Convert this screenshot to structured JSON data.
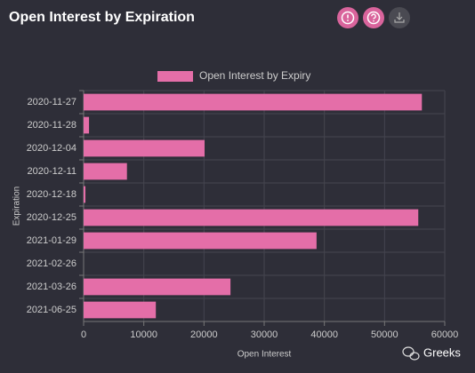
{
  "header": {
    "title": "Open Interest by Expiration"
  },
  "watermark": "Greeks",
  "chart_data": {
    "type": "bar",
    "orientation": "horizontal",
    "categories": [
      "2020-11-27",
      "2020-11-28",
      "2020-12-04",
      "2020-12-11",
      "2020-12-18",
      "2020-12-25",
      "2021-01-29",
      "2021-02-26",
      "2021-03-26",
      "2021-06-25"
    ],
    "series": [
      {
        "name": "Open Interest by Expiry",
        "color": "#e46ea8",
        "values": [
          56200,
          900,
          20100,
          7200,
          300,
          55600,
          38700,
          0,
          24400,
          12000
        ]
      }
    ],
    "xlabel": "Open Interest",
    "ylabel": "Expiration",
    "xlim": [
      0,
      60000
    ],
    "xticks": [
      0,
      10000,
      20000,
      30000,
      40000,
      50000,
      60000
    ],
    "grid": true,
    "legend": "top"
  }
}
